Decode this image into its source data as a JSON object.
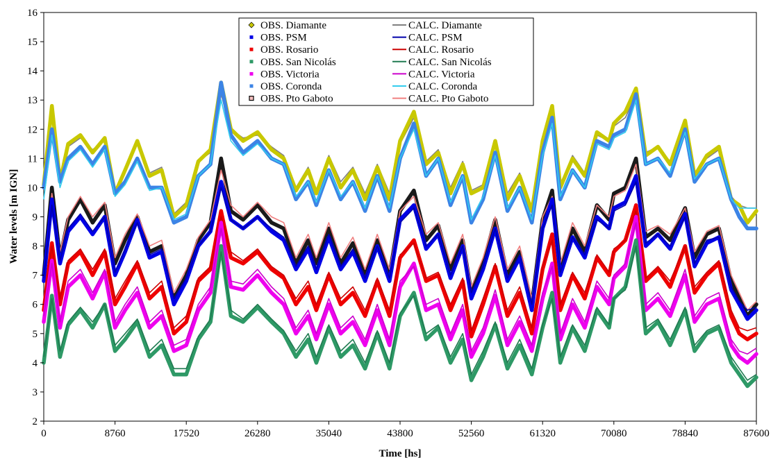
{
  "chart_data": {
    "type": "line",
    "title": "",
    "xlabel": "Time [hs]",
    "ylabel": "Water levels [m IGN]",
    "xlim": [
      0,
      87600
    ],
    "ylim": [
      2,
      16
    ],
    "x_ticks": [
      0,
      8760,
      17520,
      26280,
      35040,
      43800,
      52560,
      61320,
      70080,
      78840,
      87600
    ],
    "y_ticks": [
      2,
      3,
      4,
      5,
      6,
      7,
      8,
      9,
      10,
      11,
      12,
      13,
      14,
      15,
      16
    ],
    "grid": false,
    "legend_position": "top-center",
    "x": [
      0,
      1000,
      2000,
      3000,
      4500,
      6000,
      7500,
      8760,
      10000,
      11500,
      13000,
      14500,
      16000,
      17520,
      19000,
      20500,
      21800,
      23000,
      24500,
      26280,
      28000,
      29500,
      31000,
      32500,
      33500,
      35040,
      36500,
      38000,
      39500,
      41000,
      42500,
      43800,
      45500,
      47000,
      48500,
      50000,
      51500,
      52560,
      54000,
      55500,
      57000,
      58500,
      60000,
      61320,
      62500,
      63500,
      65000,
      66500,
      68000,
      69500,
      70080,
      71500,
      72800,
      74000,
      75500,
      77000,
      78840,
      80000,
      81500,
      83000,
      84500,
      85500,
      86500,
      87600
    ],
    "series": [
      {
        "name": "OBS. Diamante",
        "kind": "obs",
        "color": "#c8c800",
        "values": [
          10.1,
          12.8,
          10.2,
          11.5,
          11.8,
          11.2,
          11.7,
          9.8,
          10.6,
          11.6,
          10.4,
          10.6,
          9.0,
          9.4,
          10.9,
          11.3,
          13.6,
          12.0,
          11.6,
          11.9,
          11.3,
          11.0,
          9.9,
          10.6,
          9.8,
          11.0,
          10.0,
          10.6,
          9.6,
          10.7,
          9.6,
          11.6,
          12.6,
          10.8,
          11.2,
          9.8,
          10.8,
          9.8,
          10.0,
          11.6,
          9.6,
          10.4,
          9.2,
          11.6,
          12.8,
          10.0,
          11.0,
          10.4,
          11.9,
          11.6,
          12.2,
          12.6,
          13.4,
          11.1,
          11.4,
          10.8,
          12.3,
          10.4,
          11.1,
          11.4,
          9.6,
          9.4,
          8.8,
          9.2
        ]
      },
      {
        "name": "OBS. PSM",
        "kind": "obs",
        "color": "#0000e6",
        "values": [
          6.8,
          9.6,
          7.4,
          8.5,
          9.0,
          8.4,
          9.0,
          7.0,
          7.8,
          8.9,
          7.6,
          7.8,
          6.0,
          6.8,
          8.0,
          8.5,
          10.2,
          8.9,
          8.6,
          9.0,
          8.5,
          8.2,
          7.2,
          7.9,
          7.1,
          8.3,
          7.2,
          7.8,
          6.8,
          8.0,
          6.8,
          8.9,
          9.4,
          7.9,
          8.4,
          6.9,
          8.0,
          6.2,
          7.2,
          8.6,
          6.8,
          7.6,
          5.8,
          8.6,
          9.6,
          7.0,
          8.3,
          7.6,
          9.0,
          8.6,
          9.3,
          9.5,
          10.4,
          8.0,
          8.4,
          7.9,
          9.1,
          7.3,
          8.1,
          8.3,
          6.5,
          6.0,
          5.5,
          5.8
        ]
      },
      {
        "name": "OBS. Rosario",
        "kind": "obs",
        "color": "#ee0000",
        "values": [
          5.8,
          8.1,
          6.0,
          7.4,
          7.8,
          7.0,
          7.8,
          6.0,
          6.6,
          7.4,
          6.2,
          6.6,
          5.0,
          5.4,
          6.8,
          7.2,
          9.2,
          7.6,
          7.4,
          7.8,
          7.2,
          6.9,
          6.0,
          6.6,
          5.8,
          7.0,
          6.0,
          6.4,
          5.6,
          6.8,
          5.6,
          7.6,
          8.2,
          6.8,
          7.0,
          5.8,
          6.8,
          4.9,
          6.0,
          7.3,
          5.6,
          6.4,
          5.0,
          7.2,
          8.4,
          5.8,
          7.0,
          6.2,
          7.6,
          7.0,
          7.8,
          8.2,
          9.4,
          6.8,
          7.2,
          6.6,
          8.0,
          6.4,
          7.0,
          7.4,
          5.6,
          5.0,
          4.8,
          5.0
        ]
      },
      {
        "name": "OBS. San Nicolás",
        "kind": "obs",
        "color": "#2e9966",
        "values": [
          4.0,
          6.3,
          4.2,
          5.3,
          5.8,
          5.2,
          6.0,
          4.4,
          4.8,
          5.4,
          4.2,
          4.6,
          3.6,
          3.6,
          4.8,
          5.4,
          8.0,
          5.6,
          5.4,
          5.9,
          5.4,
          5.0,
          4.2,
          4.8,
          4.0,
          5.2,
          4.2,
          4.6,
          3.8,
          5.0,
          3.8,
          5.6,
          6.4,
          4.8,
          5.2,
          4.0,
          4.8,
          3.4,
          4.2,
          5.3,
          3.8,
          4.6,
          3.6,
          5.2,
          6.4,
          4.0,
          5.2,
          4.4,
          5.8,
          5.2,
          6.2,
          6.6,
          8.2,
          5.0,
          5.4,
          4.6,
          5.8,
          4.4,
          5.0,
          5.2,
          4.0,
          3.6,
          3.2,
          3.5
        ]
      },
      {
        "name": "OBS. Victoria",
        "kind": "obs",
        "color": "#ee00ee",
        "values": [
          5.4,
          7.5,
          5.2,
          6.6,
          7.0,
          6.2,
          7.1,
          5.2,
          5.8,
          6.4,
          5.2,
          5.6,
          4.4,
          4.6,
          5.8,
          6.4,
          8.8,
          6.6,
          6.5,
          7.0,
          6.4,
          6.0,
          5.0,
          5.6,
          4.8,
          6.0,
          5.0,
          5.4,
          4.6,
          5.8,
          4.6,
          6.6,
          7.4,
          5.8,
          6.0,
          4.8,
          5.8,
          4.2,
          5.0,
          6.3,
          4.6,
          5.4,
          4.4,
          6.2,
          7.4,
          4.8,
          6.0,
          5.2,
          6.6,
          6.0,
          6.9,
          7.3,
          9.0,
          5.8,
          6.2,
          5.6,
          7.0,
          5.4,
          6.0,
          6.2,
          4.6,
          4.2,
          4.0,
          4.3
        ]
      },
      {
        "name": "OBS. Coronda",
        "kind": "obs",
        "color": "#3c84e6",
        "values": [
          10.0,
          12.0,
          10.2,
          11.0,
          11.4,
          10.8,
          11.4,
          9.8,
          10.2,
          11.0,
          10.0,
          10.0,
          8.8,
          9.0,
          10.4,
          10.8,
          13.6,
          11.8,
          11.2,
          11.6,
          11.0,
          10.8,
          9.6,
          10.2,
          9.4,
          10.6,
          9.6,
          10.2,
          9.2,
          10.4,
          9.2,
          11.0,
          12.2,
          10.4,
          11.0,
          9.4,
          10.4,
          8.8,
          9.6,
          11.2,
          9.2,
          10.0,
          8.8,
          11.2,
          12.4,
          9.6,
          10.6,
          10.0,
          11.6,
          11.4,
          11.8,
          12.0,
          13.2,
          10.8,
          11.0,
          10.4,
          12.0,
          10.2,
          10.8,
          11.0,
          9.6,
          9.0,
          8.6,
          8.6
        ]
      },
      {
        "name": "OBS. Pto Gaboto",
        "kind": "obs",
        "color": "#1a1a1a",
        "values": [
          7.0,
          10.0,
          7.6,
          8.9,
          9.6,
          8.8,
          9.4,
          7.4,
          8.2,
          9.0,
          7.8,
          8.0,
          6.2,
          7.0,
          8.2,
          8.8,
          11.0,
          9.2,
          8.9,
          9.4,
          8.8,
          8.6,
          7.4,
          8.2,
          7.4,
          8.6,
          7.4,
          8.1,
          7.0,
          8.2,
          7.0,
          9.2,
          9.9,
          8.2,
          8.7,
          7.2,
          8.2,
          6.4,
          7.4,
          8.9,
          7.0,
          7.8,
          6.0,
          8.9,
          9.9,
          7.2,
          8.6,
          7.8,
          9.4,
          8.9,
          9.8,
          10.0,
          11.0,
          8.3,
          8.6,
          8.2,
          9.3,
          7.6,
          8.4,
          8.6,
          6.8,
          6.2,
          5.6,
          6.0
        ]
      },
      {
        "name": "CALC. Diamante",
        "kind": "calc",
        "color": "#808080",
        "values": [
          10.2,
          12.5,
          10.3,
          11.4,
          11.7,
          11.3,
          11.6,
          9.9,
          10.7,
          11.5,
          10.5,
          10.7,
          9.1,
          9.5,
          10.9,
          11.2,
          13.2,
          12.0,
          11.7,
          11.8,
          11.4,
          11.1,
          10.0,
          10.7,
          9.9,
          11.1,
          10.2,
          10.7,
          9.8,
          10.8,
          9.8,
          11.5,
          12.4,
          10.9,
          11.3,
          10.0,
          10.9,
          9.9,
          10.1,
          11.5,
          9.8,
          10.5,
          9.3,
          11.5,
          12.6,
          10.1,
          11.1,
          10.5,
          11.8,
          11.6,
          12.1,
          12.4,
          13.2,
          11.2,
          11.4,
          10.9,
          12.2,
          10.5,
          11.0,
          11.3,
          9.7,
          9.4,
          9.3,
          9.3
        ]
      },
      {
        "name": "CALC. PSM",
        "kind": "calc",
        "color": "#0000aa",
        "values": [
          6.9,
          9.4,
          7.5,
          8.6,
          9.1,
          8.5,
          9.0,
          7.1,
          7.9,
          8.8,
          7.7,
          7.9,
          6.2,
          6.9,
          8.0,
          8.5,
          10.0,
          8.9,
          8.6,
          9.0,
          8.6,
          8.3,
          7.3,
          8.0,
          7.2,
          8.4,
          7.3,
          7.9,
          6.9,
          8.0,
          6.9,
          8.8,
          9.3,
          8.0,
          8.4,
          7.0,
          8.0,
          6.4,
          7.3,
          8.6,
          6.9,
          7.7,
          6.0,
          8.6,
          9.4,
          7.1,
          8.3,
          7.7,
          8.9,
          8.6,
          9.2,
          9.4,
          10.2,
          8.1,
          8.4,
          8.0,
          9.0,
          7.4,
          8.2,
          8.3,
          6.6,
          6.1,
          5.8,
          5.9
        ]
      },
      {
        "name": "CALC. Rosario",
        "kind": "calc",
        "color": "#cc0000",
        "values": [
          6.0,
          8.0,
          6.2,
          7.5,
          7.9,
          7.2,
          7.9,
          6.2,
          6.8,
          7.5,
          6.4,
          6.8,
          5.2,
          5.6,
          6.9,
          7.3,
          9.0,
          7.8,
          7.5,
          7.9,
          7.3,
          7.0,
          6.2,
          6.8,
          6.0,
          7.1,
          6.2,
          6.6,
          5.8,
          6.9,
          5.8,
          7.7,
          8.1,
          6.9,
          7.1,
          6.0,
          6.9,
          5.1,
          6.2,
          7.4,
          5.8,
          6.6,
          5.2,
          7.3,
          8.2,
          6.0,
          7.1,
          6.4,
          7.7,
          7.1,
          7.9,
          8.2,
          9.2,
          6.9,
          7.3,
          6.8,
          8.0,
          6.6,
          7.1,
          7.5,
          5.8,
          5.2,
          5.1,
          5.2
        ]
      },
      {
        "name": "CALC. San Nicolás",
        "kind": "calc",
        "color": "#1f7a50",
        "values": [
          4.2,
          6.2,
          4.4,
          5.4,
          5.9,
          5.4,
          6.0,
          4.6,
          5.0,
          5.5,
          4.4,
          4.8,
          3.8,
          3.8,
          4.9,
          5.5,
          7.8,
          5.8,
          5.5,
          6.0,
          5.5,
          5.1,
          4.4,
          5.0,
          4.2,
          5.3,
          4.4,
          4.8,
          4.0,
          5.1,
          4.0,
          5.7,
          6.3,
          5.0,
          5.3,
          4.2,
          5.0,
          3.6,
          4.4,
          5.4,
          4.0,
          4.8,
          3.8,
          5.3,
          6.2,
          4.2,
          5.3,
          4.6,
          5.9,
          5.3,
          6.2,
          6.5,
          8.0,
          5.2,
          5.5,
          4.8,
          5.9,
          4.6,
          5.1,
          5.3,
          4.2,
          3.8,
          3.4,
          3.6
        ]
      },
      {
        "name": "CALC. Victoria",
        "kind": "calc",
        "color": "#cc00cc",
        "values": [
          5.6,
          7.4,
          5.4,
          6.8,
          7.2,
          6.4,
          7.2,
          5.4,
          6.0,
          6.6,
          5.4,
          5.8,
          4.6,
          4.8,
          6.0,
          6.6,
          8.6,
          6.8,
          6.7,
          7.2,
          6.6,
          6.2,
          5.2,
          5.8,
          5.0,
          6.2,
          5.2,
          5.6,
          4.8,
          6.0,
          4.8,
          6.8,
          7.3,
          6.0,
          6.2,
          5.0,
          6.0,
          4.4,
          5.2,
          6.5,
          4.8,
          5.6,
          4.6,
          6.4,
          7.3,
          5.0,
          6.2,
          5.4,
          6.8,
          6.2,
          7.0,
          7.4,
          8.8,
          6.0,
          6.4,
          5.8,
          7.2,
          5.6,
          6.2,
          6.4,
          4.8,
          4.4,
          4.3,
          4.5
        ]
      },
      {
        "name": "CALC. Coronda",
        "kind": "calc",
        "color": "#33ccee",
        "values": [
          9.6,
          11.8,
          10.0,
          10.9,
          11.3,
          10.7,
          11.3,
          9.7,
          10.1,
          10.9,
          9.9,
          10.0,
          8.9,
          9.1,
          10.4,
          10.8,
          13.0,
          11.6,
          11.1,
          11.5,
          11.0,
          10.8,
          9.7,
          10.2,
          9.5,
          10.6,
          9.7,
          10.2,
          9.3,
          10.4,
          9.3,
          11.0,
          12.0,
          10.4,
          11.0,
          9.5,
          10.4,
          8.9,
          9.7,
          11.1,
          9.3,
          10.0,
          8.9,
          11.1,
          12.2,
          9.7,
          10.6,
          10.0,
          11.5,
          11.3,
          11.7,
          11.9,
          13.0,
          10.8,
          11.0,
          10.5,
          11.9,
          10.3,
          10.8,
          11.0,
          9.6,
          9.3,
          9.3,
          9.3
        ]
      },
      {
        "name": "CALC. Pto Gaboto",
        "kind": "calc",
        "color": "#f08080",
        "values": [
          7.2,
          9.8,
          7.8,
          9.0,
          9.7,
          9.0,
          9.5,
          7.6,
          8.4,
          9.1,
          8.0,
          8.2,
          6.4,
          7.2,
          8.3,
          8.9,
          10.6,
          9.4,
          9.0,
          9.5,
          9.0,
          8.8,
          7.6,
          8.4,
          7.6,
          8.8,
          7.6,
          8.3,
          7.2,
          8.4,
          7.2,
          9.2,
          9.7,
          8.4,
          8.8,
          7.4,
          8.4,
          6.6,
          7.6,
          9.0,
          7.2,
          8.0,
          6.2,
          9.0,
          9.7,
          7.4,
          8.8,
          8.0,
          9.4,
          9.0,
          9.7,
          9.9,
          10.8,
          8.5,
          8.7,
          8.4,
          9.3,
          7.8,
          8.5,
          8.7,
          7.0,
          6.4,
          5.8,
          6.1
        ]
      }
    ]
  }
}
